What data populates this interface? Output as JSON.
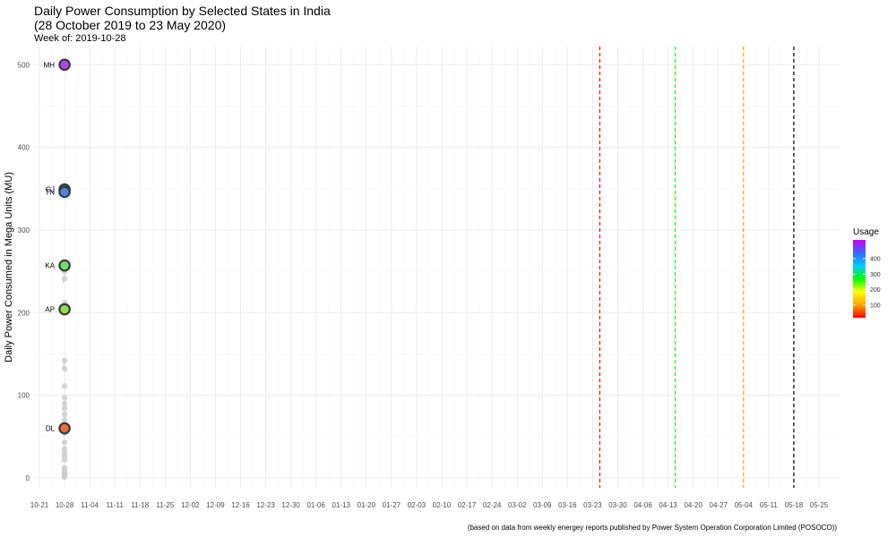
{
  "title_line1": "Daily Power Consumption by Selected States in India",
  "title_line2": "(28 October 2019 to 23 May 2020)",
  "subtitle": "Week of: 2019-10-28",
  "caption": "(based on data from weekly energey reports published by Power System Operation Corporation Limited (POSOCO))",
  "chart_data": {
    "type": "scatter",
    "ylabel": "Daily Power Consumed in Mega Units (MU)",
    "xlabel": "",
    "x_categories": [
      "10-21",
      "10-28",
      "11-04",
      "11-11",
      "11-18",
      "11-25",
      "12-02",
      "12-09",
      "12-16",
      "12-23",
      "12-30",
      "01-06",
      "01-13",
      "01-20",
      "01-27",
      "02-03",
      "02-10",
      "02-17",
      "02-24",
      "03-02",
      "03-09",
      "03-16",
      "03-23",
      "03-30",
      "04-06",
      "04-13",
      "04-20",
      "04-27",
      "05-04",
      "05-11",
      "05-18",
      "05-25"
    ],
    "ylim": [
      -12,
      522
    ],
    "y_ticks": [
      0,
      100,
      200,
      300,
      400,
      500
    ],
    "grid": true,
    "current_week": "10-28",
    "highlighted_states": [
      {
        "label": "MH",
        "value": 500,
        "color": "#b044ee"
      },
      {
        "label": "GJ",
        "value": 349,
        "color": "#4a6ce6"
      },
      {
        "label": "TN",
        "value": 346,
        "color": "#4a86e0"
      },
      {
        "label": "KA",
        "value": 257,
        "color": "#6fe070"
      },
      {
        "label": "AP",
        "value": 204,
        "color": "#8ee04a"
      },
      {
        "label": "DL",
        "value": 60,
        "color": "#f06a3a"
      }
    ],
    "background_points": [
      142,
      132,
      111,
      97,
      90,
      84,
      77,
      70,
      63,
      54,
      43,
      35,
      30,
      26,
      22,
      12,
      9,
      7,
      5,
      3,
      2,
      1,
      241,
      250,
      212,
      208
    ],
    "vlines": [
      {
        "date": "03-25",
        "color": "#ff0000"
      },
      {
        "date": "04-15",
        "color": "#00ff00"
      },
      {
        "date": "05-04",
        "color": "#ffa500"
      },
      {
        "date": "05-18",
        "color": "#000000"
      }
    ],
    "legend": {
      "title": "Usage",
      "placement": "right",
      "ticks": [
        100,
        200,
        300,
        400
      ],
      "range": [
        20,
        520
      ],
      "gradient": [
        "#ff0000",
        "#ffa500",
        "#ffff00",
        "#00ff00",
        "#00ccff",
        "#3366ff",
        "#cc00ff"
      ]
    }
  }
}
